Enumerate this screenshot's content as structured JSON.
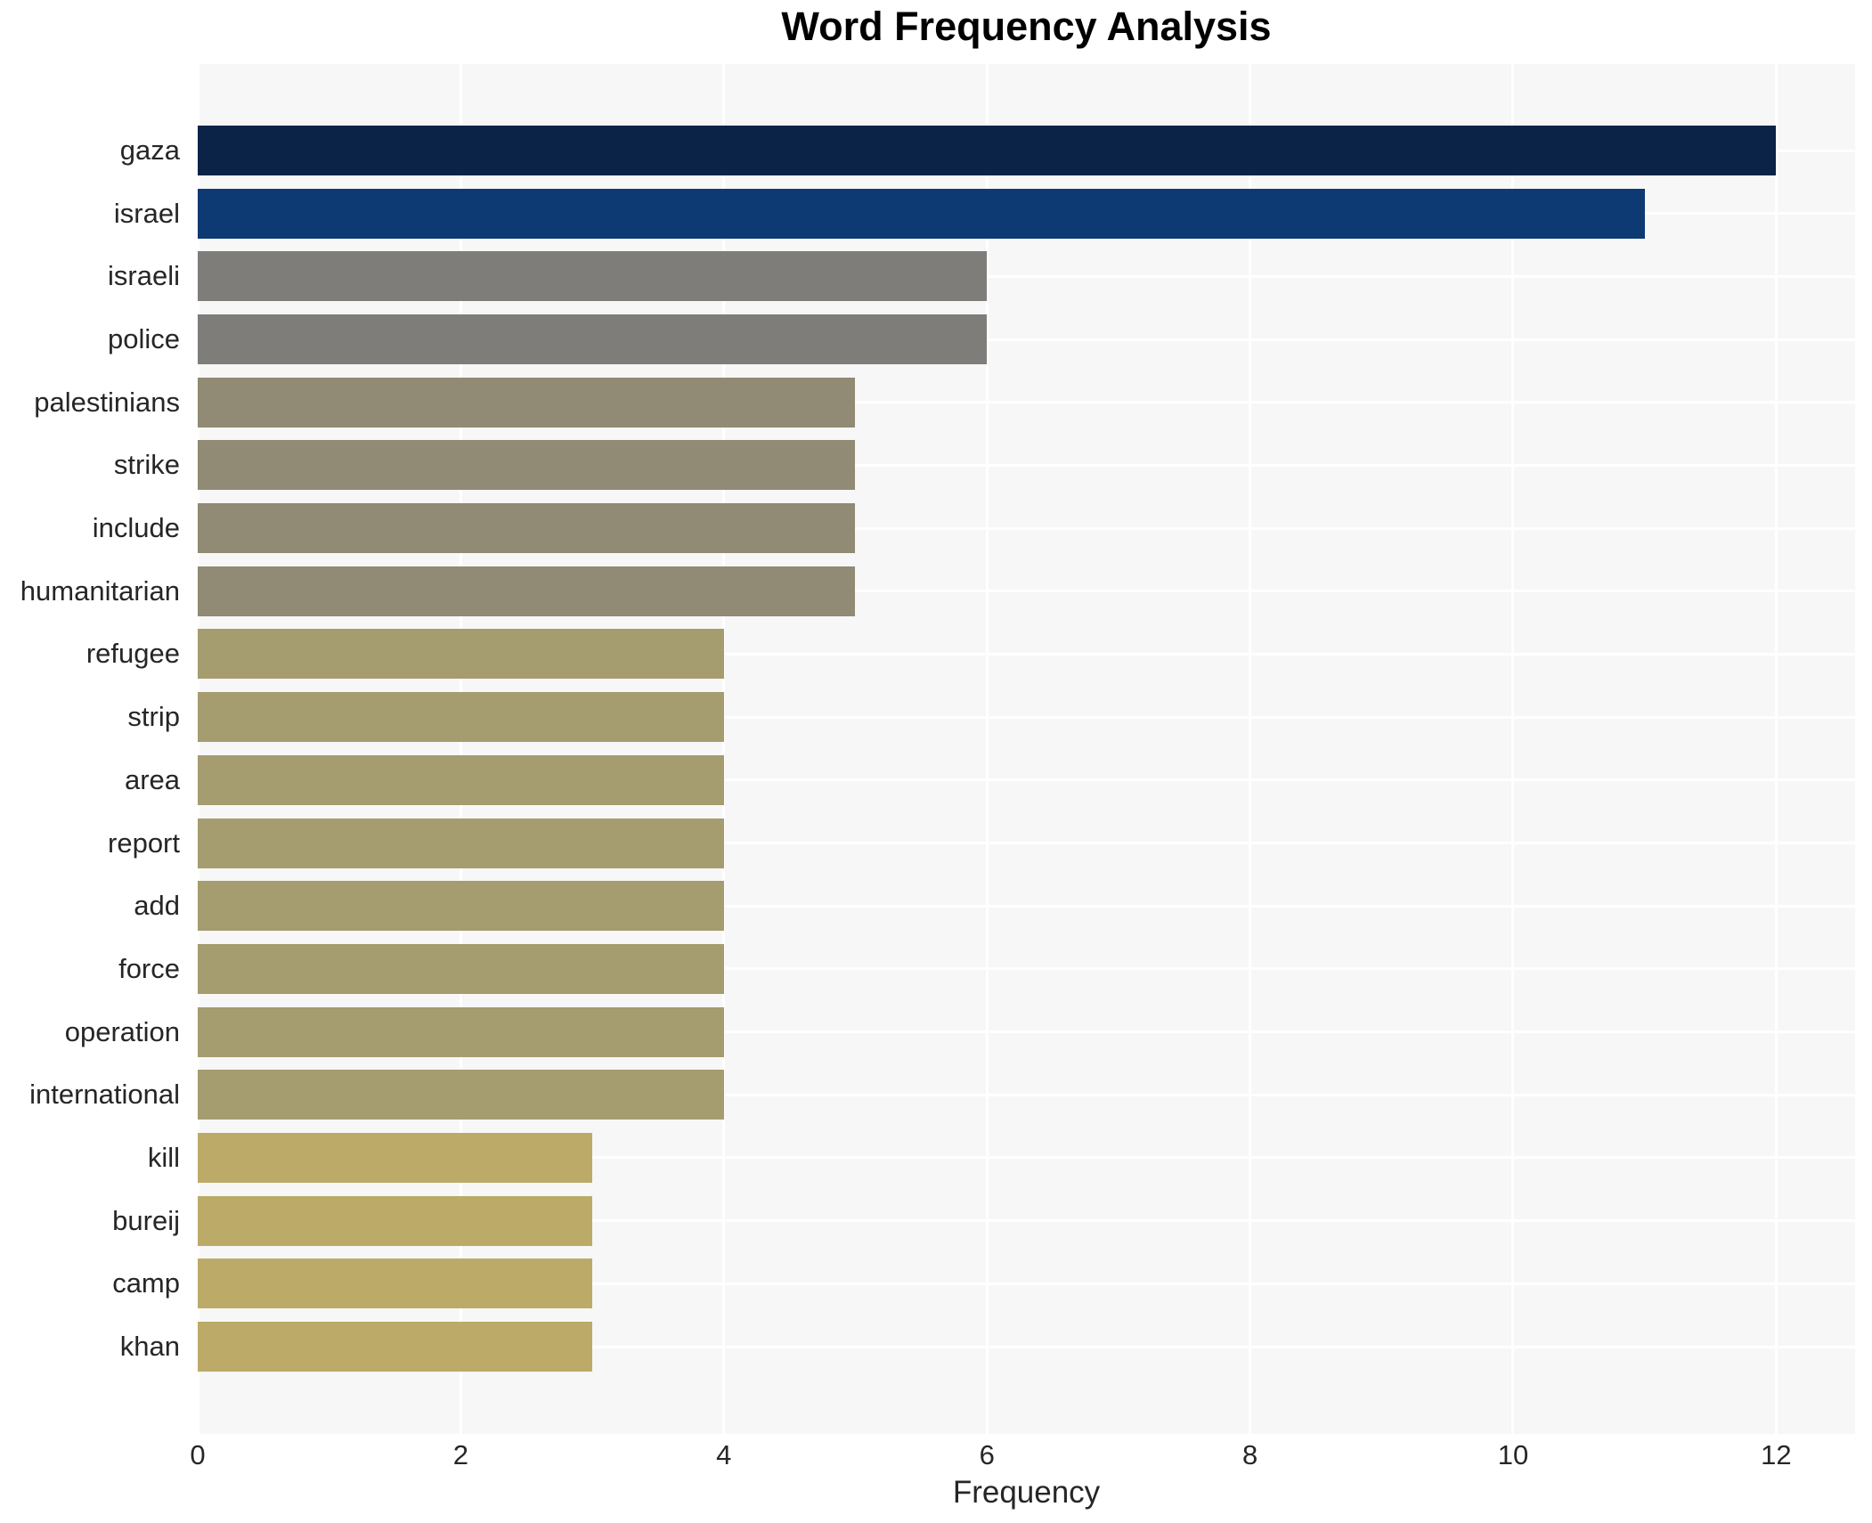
{
  "chart_data": {
    "type": "bar",
    "orientation": "horizontal",
    "title": "Word Frequency Analysis",
    "xlabel": "Frequency",
    "xlim": [
      0,
      12.6
    ],
    "xticks": [
      0,
      2,
      4,
      6,
      8,
      10,
      12
    ],
    "grid": true,
    "plot_bg_color": "#f7f7f8",
    "grid_color": "#ffffff",
    "text_color": "#262626",
    "title_color": "#000000",
    "categories": [
      "gaza",
      "israel",
      "israeli",
      "police",
      "palestinians",
      "strike",
      "include",
      "humanitarian",
      "refugee",
      "strip",
      "area",
      "report",
      "add",
      "force",
      "operation",
      "international",
      "kill",
      "bureij",
      "camp",
      "khan"
    ],
    "values": [
      12,
      11,
      6,
      6,
      5,
      5,
      5,
      5,
      4,
      4,
      4,
      4,
      4,
      4,
      4,
      4,
      3,
      3,
      3,
      3
    ],
    "bar_colors": [
      "#0a2347",
      "#0e3a74",
      "#7f7d7a",
      "#7f7d7a",
      "#918a74",
      "#918a74",
      "#918a74",
      "#918a74",
      "#a59c6f",
      "#a59c6f",
      "#a59c6f",
      "#a59c6f",
      "#a59c6f",
      "#a59c6f",
      "#a59c6f",
      "#a59c6f",
      "#bcab68",
      "#bcab68",
      "#bcab68",
      "#bcab68"
    ]
  }
}
